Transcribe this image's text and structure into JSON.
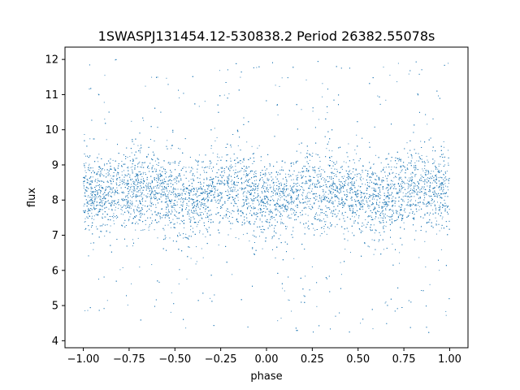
{
  "chart_data": {
    "type": "scatter",
    "title": "1SWASPJ131454.12-530838.2 Period 26382.55078s",
    "xlabel": "phase",
    "ylabel": "flux",
    "xlim": [
      -1.1,
      1.1
    ],
    "ylim": [
      3.8,
      12.35
    ],
    "x_ticks": [
      -1.0,
      -0.75,
      -0.5,
      -0.25,
      0.0,
      0.25,
      0.5,
      0.75,
      1.0
    ],
    "x_tick_labels": [
      "−1.00",
      "−0.75",
      "−0.50",
      "−0.25",
      "0.00",
      "0.25",
      "0.50",
      "0.75",
      "1.00"
    ],
    "y_ticks": [
      4,
      5,
      6,
      7,
      8,
      9,
      10,
      11,
      12
    ],
    "y_tick_labels": [
      "4",
      "5",
      "6",
      "7",
      "8",
      "9",
      "10",
      "11",
      "12"
    ],
    "grid": false,
    "marker_color": "#1f77b4",
    "series": [
      {
        "phase_range": [
          -1.0,
          1.0
        ],
        "flux_range": [
          4.2,
          12.0
        ],
        "mean_flux_profile": {
          "phase": [
            -1.0,
            -0.75,
            -0.65,
            -0.5,
            -0.4,
            -0.25,
            -0.15,
            0.0,
            0.05,
            0.25,
            0.35,
            0.5,
            0.6,
            0.75,
            0.85,
            1.0
          ],
          "flux": [
            8.15,
            8.3,
            8.35,
            8.1,
            7.95,
            8.3,
            8.35,
            8.0,
            7.95,
            8.3,
            8.35,
            8.1,
            7.95,
            8.3,
            8.35,
            8.15
          ]
        },
        "core_spread": 0.55,
        "outlier_fraction": 0.1
      }
    ]
  }
}
